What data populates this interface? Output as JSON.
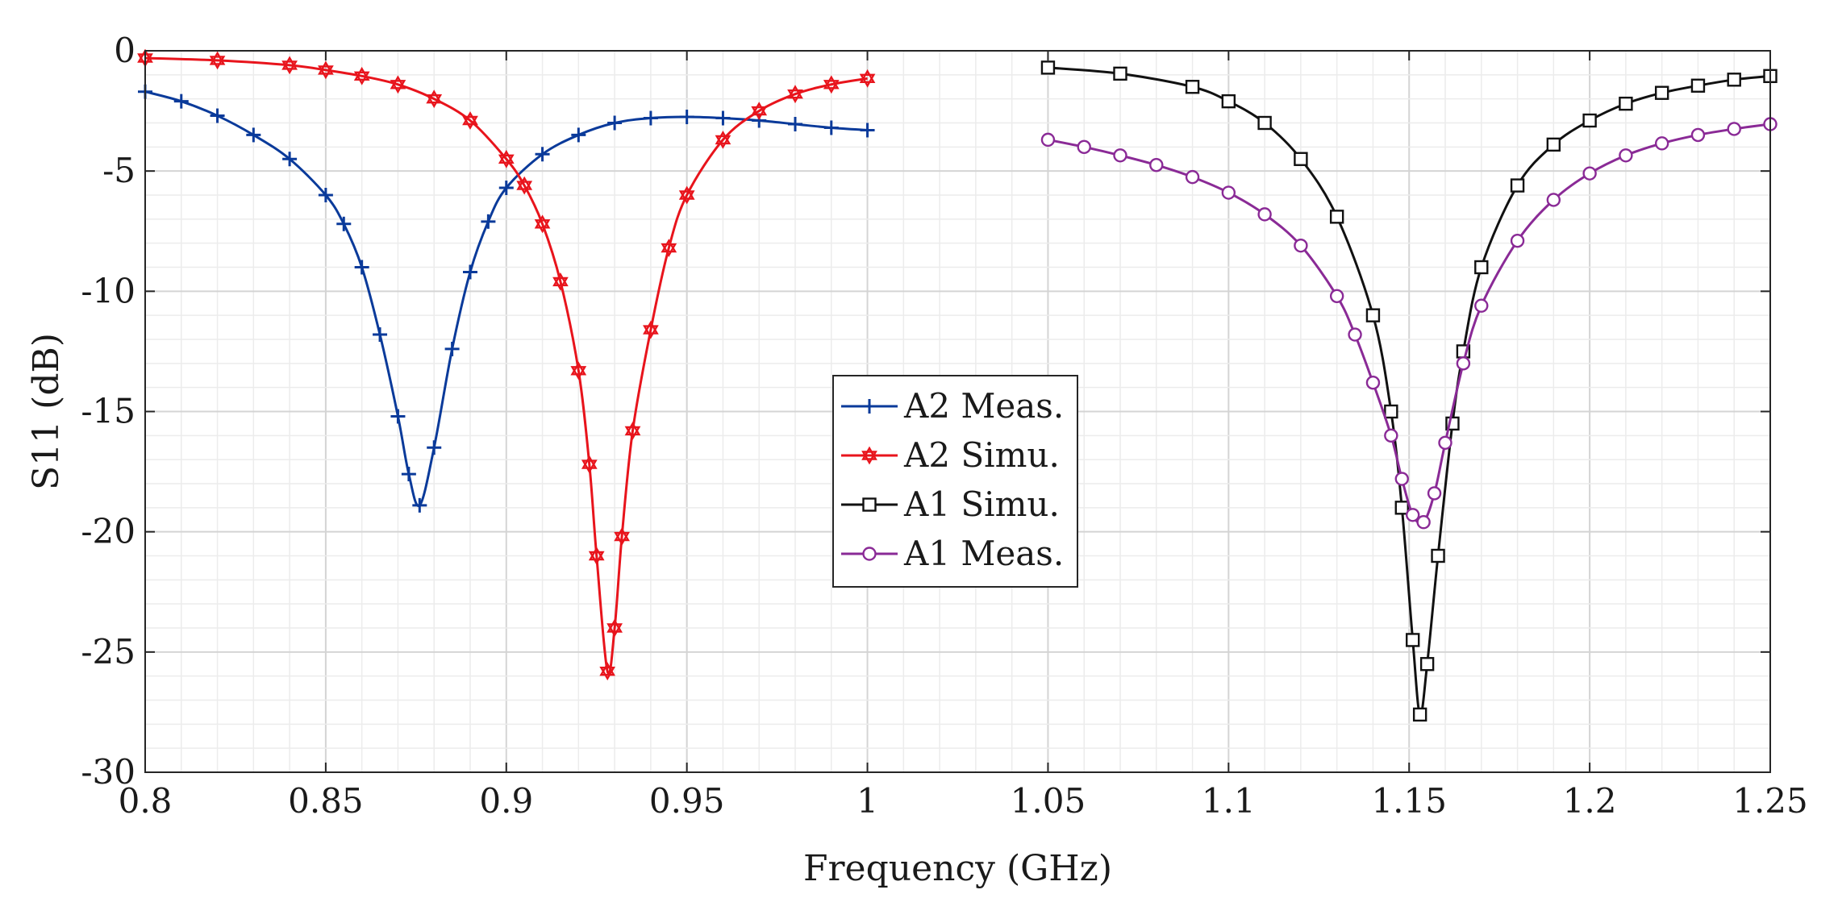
{
  "chart_data": {
    "type": "line",
    "title": "",
    "xlabel": "Frequency (GHz)",
    "ylabel": "S11 (dB)",
    "xlim": [
      0.8,
      1.25
    ],
    "ylim": [
      -30,
      0
    ],
    "xticks": [
      0.8,
      0.85,
      0.9,
      0.95,
      1,
      1.05,
      1.1,
      1.15,
      1.2,
      1.25
    ],
    "xtick_labels": [
      "0.8",
      "0.85",
      "0.9",
      "0.95",
      "1",
      "1.05",
      "1.1",
      "1.15",
      "1.2",
      "1.25"
    ],
    "yticks": [
      0,
      -5,
      -10,
      -15,
      -20,
      -25,
      -30
    ],
    "ytick_labels": [
      "0",
      "-5",
      "-10",
      "-15",
      "-20",
      "-25",
      "-30"
    ],
    "grid": true,
    "minor_grid": true,
    "legend_position": "center",
    "series": [
      {
        "name": "A2 Meas.",
        "color": "#0a3a9a",
        "marker": "plus",
        "x": [
          0.8,
          0.81,
          0.82,
          0.83,
          0.84,
          0.85,
          0.855,
          0.86,
          0.865,
          0.87,
          0.873,
          0.876,
          0.88,
          0.885,
          0.89,
          0.895,
          0.9,
          0.91,
          0.92,
          0.93,
          0.94,
          0.95,
          0.96,
          0.97,
          0.98,
          0.99,
          1.0
        ],
        "y": [
          -1.7,
          -2.1,
          -2.7,
          -3.5,
          -4.5,
          -6.0,
          -7.2,
          -9.0,
          -11.8,
          -15.2,
          -17.6,
          -18.9,
          -16.5,
          -12.4,
          -9.2,
          -7.1,
          -5.7,
          -4.3,
          -3.5,
          -3.0,
          -2.8,
          -2.75,
          -2.8,
          -2.9,
          -3.05,
          -3.2,
          -3.3
        ]
      },
      {
        "name": "A2 Simu.",
        "color": "#e8141c",
        "marker": "hexagram",
        "x": [
          0.8,
          0.82,
          0.84,
          0.85,
          0.86,
          0.87,
          0.88,
          0.89,
          0.9,
          0.905,
          0.91,
          0.915,
          0.92,
          0.923,
          0.925,
          0.928,
          0.93,
          0.932,
          0.935,
          0.94,
          0.945,
          0.95,
          0.96,
          0.97,
          0.98,
          0.99,
          1.0
        ],
        "y": [
          -0.3,
          -0.4,
          -0.6,
          -0.8,
          -1.05,
          -1.4,
          -2.0,
          -2.9,
          -4.5,
          -5.6,
          -7.2,
          -9.6,
          -13.3,
          -17.2,
          -21.0,
          -25.8,
          -24.0,
          -20.2,
          -15.8,
          -11.6,
          -8.2,
          -6.0,
          -3.7,
          -2.5,
          -1.8,
          -1.4,
          -1.15
        ]
      },
      {
        "name": "A1 Simu.",
        "color": "#111111",
        "marker": "square",
        "x": [
          1.05,
          1.07,
          1.09,
          1.1,
          1.11,
          1.12,
          1.13,
          1.14,
          1.145,
          1.148,
          1.151,
          1.153,
          1.155,
          1.158,
          1.162,
          1.165,
          1.17,
          1.18,
          1.19,
          1.2,
          1.21,
          1.22,
          1.23,
          1.24,
          1.25
        ],
        "y": [
          -0.7,
          -0.95,
          -1.5,
          -2.1,
          -3.0,
          -4.5,
          -6.9,
          -11.0,
          -15.0,
          -19.0,
          -24.5,
          -27.6,
          -25.5,
          -21.0,
          -15.5,
          -12.5,
          -9.0,
          -5.6,
          -3.9,
          -2.9,
          -2.2,
          -1.75,
          -1.45,
          -1.2,
          -1.05
        ]
      },
      {
        "name": "A1 Meas.",
        "color": "#8a2a96",
        "marker": "circle",
        "x": [
          1.05,
          1.06,
          1.07,
          1.08,
          1.09,
          1.1,
          1.11,
          1.12,
          1.13,
          1.135,
          1.14,
          1.145,
          1.148,
          1.151,
          1.154,
          1.157,
          1.16,
          1.165,
          1.17,
          1.18,
          1.19,
          1.2,
          1.21,
          1.22,
          1.23,
          1.24,
          1.25
        ],
        "y": [
          -3.7,
          -4.0,
          -4.35,
          -4.75,
          -5.25,
          -5.9,
          -6.8,
          -8.1,
          -10.2,
          -11.8,
          -13.8,
          -16.0,
          -17.8,
          -19.3,
          -19.6,
          -18.4,
          -16.3,
          -13.0,
          -10.6,
          -7.9,
          -6.2,
          -5.1,
          -4.35,
          -3.85,
          -3.5,
          -3.25,
          -3.05
        ]
      }
    ]
  }
}
